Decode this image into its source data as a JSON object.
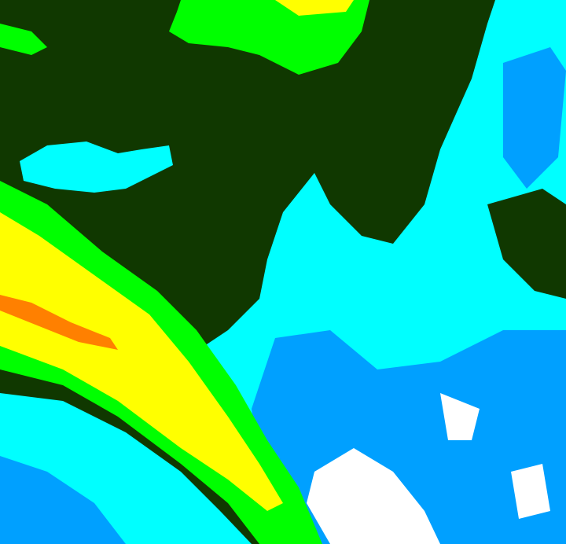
{
  "map": {
    "kind": "satellite-cloud-classification",
    "palette": {
      "background": "#103800",
      "cyan": "#00ffff",
      "blue": "#00a0ff",
      "green": "#00ff00",
      "lime": "#80ff00",
      "yellow": "#ffff00",
      "orange": "#ff8000",
      "white": "#ffffff"
    }
  }
}
